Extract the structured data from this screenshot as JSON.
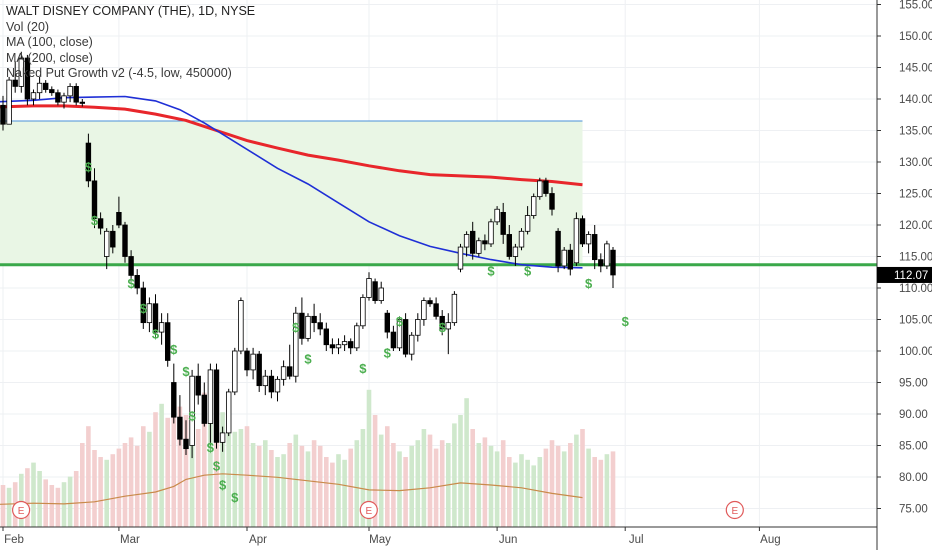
{
  "legend": {
    "title": "WALT DISNEY COMPANY (THE), 1D, NYSE",
    "vol": "Vol (20)",
    "ma100": "MA (100, close)",
    "ma200": "MA (200, close)",
    "indicator": "Naked Put Growth v2 (-4.5, low, 450000)"
  },
  "colors": {
    "up_candle": "#ffffff",
    "down_candle": "#000000",
    "ma100": "#1f2fd6",
    "ma200": "#e8262b",
    "support": "#3aa84a",
    "zone_fill": "#e9f6e5",
    "zone_line": "#4a90d9",
    "vol_up": "#cfe8cc",
    "vol_down": "#f3cfcf",
    "vol_ma": "#c98a4a",
    "price_label_bg": "#000000",
    "dollar_sign": "#4caf50",
    "earnings": "#e05a5a"
  },
  "chart_data": {
    "type": "candlestick",
    "title": "WALT DISNEY COMPANY (THE), 1D, NYSE",
    "ylim": [
      72.5,
      156
    ],
    "y_ticks": [
      "155.00",
      "150.00",
      "145.00",
      "140.00",
      "135.00",
      "130.00",
      "125.00",
      "120.00",
      "115.00",
      "110.00",
      "105.00",
      "100.00",
      "95.00",
      "90.00",
      "85.00",
      "80.00",
      "75.00"
    ],
    "x_ticks": [
      {
        "label": "Feb",
        "x": 0
      },
      {
        "label": "Mar",
        "x": 19
      },
      {
        "label": "Apr",
        "x": 40
      },
      {
        "label": "May",
        "x": 60
      },
      {
        "label": "Jun",
        "x": 81
      },
      {
        "label": "Jul",
        "x": 102
      },
      {
        "label": "Aug",
        "x": 124
      }
    ],
    "last_price": "112.07",
    "support_level": 113.7,
    "zone": {
      "top": 136.5,
      "bottom": 113.7,
      "x_start": -2,
      "x_end": 95
    },
    "candles": [
      [
        139,
        140.5,
        135,
        136
      ],
      [
        136,
        143.5,
        136,
        143
      ],
      [
        143,
        146,
        141,
        142
      ],
      [
        142,
        147.5,
        141,
        146.5
      ],
      [
        146.5,
        147,
        139,
        140
      ],
      [
        140,
        141.5,
        139,
        141
      ],
      [
        141,
        143.5,
        140,
        142.5
      ],
      [
        142.5,
        143,
        141,
        141.5
      ],
      [
        141.5,
        142,
        140.5,
        141
      ],
      [
        141,
        141.5,
        139,
        139.5
      ],
      [
        139.5,
        141,
        138.5,
        140.5
      ],
      [
        140.5,
        142.5,
        139.5,
        142
      ],
      [
        142,
        142.5,
        139,
        139.5
      ],
      [
        139.5,
        140,
        138.8,
        139.3
      ],
      [
        133,
        134.5,
        126,
        127
      ],
      [
        127,
        129,
        119.5,
        121
      ],
      [
        121,
        122,
        118.5,
        119.5
      ],
      [
        115,
        119.5,
        113,
        119
      ],
      [
        119,
        120,
        115.5,
        116.5
      ],
      [
        122,
        124.5,
        119.5,
        120
      ],
      [
        120,
        120.5,
        114,
        115
      ],
      [
        115,
        116,
        111,
        112
      ],
      [
        112,
        113,
        109,
        110
      ],
      [
        110,
        111,
        103.5,
        104.5
      ],
      [
        104.5,
        108.5,
        103,
        107.5
      ],
      [
        107.5,
        109,
        102,
        103
      ],
      [
        103,
        106,
        101,
        104.5
      ],
      [
        104.5,
        106,
        97.5,
        98.5
      ],
      [
        95,
        98,
        88.5,
        89.5
      ],
      [
        89.5,
        93,
        85,
        86
      ],
      [
        86,
        89,
        83.5,
        84.5
      ],
      [
        85,
        97,
        83,
        96
      ],
      [
        96,
        98,
        91.5,
        93
      ],
      [
        93,
        95,
        88,
        88.5
      ],
      [
        88.5,
        98,
        85,
        97
      ],
      [
        97,
        98,
        84.5,
        85.5
      ],
      [
        85.5,
        88,
        84,
        87
      ],
      [
        87,
        94,
        86.5,
        93.5
      ],
      [
        93.5,
        100.5,
        93,
        100
      ],
      [
        100,
        108.5,
        99.5,
        108
      ],
      [
        100,
        100.5,
        96,
        97
      ],
      [
        97,
        100.5,
        95.5,
        99.5
      ],
      [
        99.5,
        100,
        93.5,
        94.5
      ],
      [
        94.5,
        97,
        93,
        96
      ],
      [
        96,
        97,
        92.5,
        93.5
      ],
      [
        93.5,
        96,
        92,
        95.5
      ],
      [
        95.5,
        98.5,
        94.5,
        97.5
      ],
      [
        97.5,
        101,
        95.5,
        96
      ],
      [
        96,
        107,
        95,
        106
      ],
      [
        106,
        108.5,
        101,
        102
      ],
      [
        102,
        106,
        101.5,
        105.5
      ],
      [
        105.5,
        107.5,
        103,
        104.5
      ],
      [
        104.5,
        106,
        102.5,
        103.5
      ],
      [
        103.5,
        104.5,
        100,
        101
      ],
      [
        101,
        102,
        99.5,
        100.5
      ],
      [
        100.5,
        102,
        99.5,
        101
      ],
      [
        101,
        102.5,
        100,
        101.5
      ],
      [
        101.5,
        102,
        99.5,
        100.5
      ],
      [
        100.5,
        104.5,
        100,
        104
      ],
      [
        104,
        109,
        103.5,
        108.5
      ],
      [
        108.5,
        112.5,
        108,
        111.5
      ],
      [
        111,
        111.5,
        107.5,
        108
      ],
      [
        108,
        111,
        107.5,
        110
      ],
      [
        106,
        106.5,
        102,
        103
      ],
      [
        103,
        104,
        100,
        100.5
      ],
      [
        100.5,
        105.5,
        100,
        105
      ],
      [
        105,
        106,
        99,
        99.5
      ],
      [
        99.5,
        103,
        98.5,
        102.5
      ],
      [
        102.5,
        106,
        101.5,
        105
      ],
      [
        105,
        108.5,
        104,
        108
      ],
      [
        108,
        108.5,
        107,
        107.5
      ],
      [
        107.5,
        108.5,
        105,
        105.5
      ],
      [
        105.5,
        106.5,
        102.5,
        103.5
      ],
      [
        103.5,
        106,
        99.5,
        104.5
      ],
      [
        104.5,
        109.5,
        104,
        109
      ],
      [
        113,
        117,
        112.5,
        116.5
      ],
      [
        116.5,
        119,
        115,
        118.5
      ],
      [
        119,
        120.5,
        114.5,
        115.5
      ],
      [
        115.5,
        118,
        115,
        117.5
      ],
      [
        117.5,
        118.5,
        116,
        117
      ],
      [
        117,
        121,
        116.5,
        120.5
      ],
      [
        120.5,
        123,
        120,
        122.5
      ],
      [
        122,
        123.5,
        117,
        118.5
      ],
      [
        118.5,
        120,
        114.5,
        115
      ],
      [
        115,
        117,
        113.5,
        116.5
      ],
      [
        116.5,
        119.5,
        116,
        119
      ],
      [
        119,
        123,
        118.5,
        121.5
      ],
      [
        121.5,
        125,
        121,
        124.5
      ],
      [
        124.5,
        127.5,
        124,
        127
      ],
      [
        127,
        127.5,
        124.5,
        125
      ],
      [
        125,
        126,
        121.5,
        122.5
      ],
      [
        119,
        119.5,
        112.5,
        113.5
      ],
      [
        113.5,
        116.5,
        113,
        116
      ],
      [
        116,
        117,
        112,
        113
      ],
      [
        114,
        122,
        113.5,
        121
      ],
      [
        121,
        121.5,
        116.5,
        117
      ],
      [
        117,
        119,
        115.5,
        118.5
      ],
      [
        118.5,
        120,
        113,
        114.5
      ],
      [
        114.5,
        115.5,
        112.5,
        113.5
      ],
      [
        113.5,
        117.5,
        113,
        117
      ],
      [
        116,
        116.5,
        110,
        112.07
      ]
    ],
    "ma100": [
      [
        -2,
        139.5
      ],
      [
        5,
        139.8
      ],
      [
        10,
        140.2
      ],
      [
        15,
        140.3
      ],
      [
        20,
        140.4
      ],
      [
        25,
        139.7
      ],
      [
        29,
        138.3
      ],
      [
        33,
        136.2
      ],
      [
        38,
        133.2
      ],
      [
        45,
        129
      ],
      [
        50,
        126.5
      ],
      [
        55,
        123.5
      ],
      [
        60,
        120.5
      ],
      [
        65,
        118.3
      ],
      [
        70,
        116.6
      ],
      [
        75,
        115.5
      ],
      [
        80,
        114.5
      ],
      [
        85,
        113.7
      ],
      [
        90,
        113.3
      ],
      [
        95,
        113.2
      ]
    ],
    "ma200": [
      [
        -2,
        138.7
      ],
      [
        5,
        138.9
      ],
      [
        10,
        138.9
      ],
      [
        15,
        138.7
      ],
      [
        20,
        138.4
      ],
      [
        25,
        137.6
      ],
      [
        30,
        136.6
      ],
      [
        35,
        135
      ],
      [
        40,
        133.4
      ],
      [
        45,
        132.2
      ],
      [
        50,
        131.1
      ],
      [
        55,
        130.3
      ],
      [
        60,
        129.4
      ],
      [
        65,
        128.6
      ],
      [
        70,
        128
      ],
      [
        75,
        127.8
      ],
      [
        80,
        127.6
      ],
      [
        85,
        127.2
      ],
      [
        90,
        126.9
      ],
      [
        95,
        126.4
      ]
    ],
    "volume": [
      30,
      28,
      32,
      38,
      42,
      46,
      40,
      34,
      30,
      28,
      32,
      36,
      40,
      60,
      72,
      55,
      50,
      48,
      52,
      56,
      60,
      64,
      58,
      72,
      68,
      82,
      88,
      78,
      92,
      86,
      80,
      75,
      70,
      96,
      88,
      74,
      82,
      78,
      68,
      70,
      72,
      60,
      58,
      62,
      55,
      50,
      52,
      60,
      66,
      58,
      54,
      62,
      58,
      50,
      46,
      52,
      48,
      56,
      62,
      70,
      98,
      80,
      66,
      72,
      60,
      54,
      50,
      58,
      62,
      70,
      66,
      56,
      62,
      60,
      74,
      80,
      92,
      70,
      60,
      64,
      58,
      54,
      62,
      50,
      46,
      52,
      48,
      44,
      50,
      56,
      62,
      58,
      54,
      60,
      66,
      70,
      56,
      50,
      48,
      52,
      54
    ],
    "volume_ma": [
      [
        -2,
        16
      ],
      [
        5,
        17
      ],
      [
        10,
        16.5
      ],
      [
        15,
        18
      ],
      [
        20,
        22
      ],
      [
        25,
        25
      ],
      [
        28,
        29
      ],
      [
        30,
        34
      ],
      [
        33,
        37
      ],
      [
        36,
        38
      ],
      [
        40,
        37
      ],
      [
        45,
        35.5
      ],
      [
        50,
        33
      ],
      [
        55,
        30.5
      ],
      [
        60,
        26.5
      ],
      [
        65,
        26
      ],
      [
        70,
        28
      ],
      [
        75,
        31.5
      ],
      [
        80,
        30
      ],
      [
        85,
        28
      ],
      [
        90,
        24
      ],
      [
        95,
        21
      ]
    ],
    "dollar_markers": [
      [
        14,
        128.5
      ],
      [
        15,
        120
      ],
      [
        21,
        110
      ],
      [
        23,
        106
      ],
      [
        25,
        102
      ],
      [
        28,
        99.5
      ],
      [
        30,
        96
      ],
      [
        31,
        89
      ],
      [
        34,
        84
      ],
      [
        35,
        81
      ],
      [
        36,
        78
      ],
      [
        38,
        76
      ],
      [
        48,
        103
      ],
      [
        50,
        98
      ],
      [
        59,
        96.5
      ],
      [
        63,
        99
      ],
      [
        65,
        104
      ],
      [
        72,
        103
      ],
      [
        80,
        112
      ],
      [
        86,
        112
      ],
      [
        96,
        110
      ],
      [
        102,
        104
      ]
    ],
    "earnings": [
      {
        "label": "E",
        "x": 1
      },
      {
        "label": "E",
        "x": 58
      },
      {
        "label": "E",
        "x": 118
      }
    ]
  }
}
